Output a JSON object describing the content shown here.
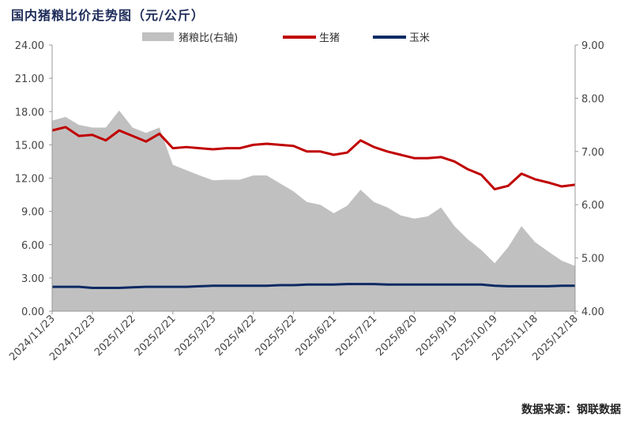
{
  "chart_data": {
    "type": "line",
    "title": "国内猪粮比价走势图（元/公斤）",
    "source": "数据来源：钢联数据",
    "x": [
      "2024/11/23",
      "2024/12/3",
      "2024/12/13",
      "2024/12/23",
      "2025/1/2",
      "2025/1/12",
      "2025/1/22",
      "2025/2/1",
      "2025/2/11",
      "2025/2/21",
      "2025/3/3",
      "2025/3/13",
      "2025/3/23",
      "2025/4/2",
      "2025/4/12",
      "2025/4/22",
      "2025/5/2",
      "2025/5/12",
      "2025/5/22",
      "2025/6/1",
      "2025/6/11",
      "2025/6/21",
      "2025/7/1",
      "2025/7/11",
      "2025/7/21",
      "2025/7/31",
      "2025/8/10",
      "2025/8/20",
      "2025/8/30",
      "2025/9/9",
      "2025/9/19",
      "2025/9/29",
      "2025/10/9",
      "2025/10/19",
      "2025/10/29",
      "2025/11/8",
      "2025/11/18",
      "2025/11/28",
      "2025/12/8",
      "2025/12/18"
    ],
    "x_ticks": [
      "2024/11/23",
      "2024/12/23",
      "2025/1/22",
      "2025/2/21",
      "2025/3/23",
      "2025/4/22",
      "2025/5/22",
      "2025/6/21",
      "2025/7/21",
      "2025/8/20",
      "2025/9/19",
      "2025/10/19",
      "2025/11/18",
      "2025/12/18"
    ],
    "y_left": {
      "range": [
        0,
        24
      ],
      "ticks": [
        "0.00",
        "3.00",
        "6.00",
        "9.00",
        "12.00",
        "15.00",
        "18.00",
        "21.00",
        "24.00"
      ]
    },
    "y_right": {
      "range": [
        4,
        9
      ],
      "ticks": [
        "4.00",
        "5.00",
        "6.00",
        "7.00",
        "8.00",
        "9.00"
      ]
    },
    "grid": false,
    "legend_placement": "top",
    "series": [
      {
        "name": "猪粮比(右轴)",
        "type": "area",
        "axis": "right",
        "color": "#c0c0c0",
        "values": [
          7.58,
          7.65,
          7.5,
          7.45,
          7.45,
          7.77,
          7.45,
          7.35,
          7.45,
          6.75,
          6.65,
          6.55,
          6.46,
          6.47,
          6.47,
          6.55,
          6.55,
          6.4,
          6.25,
          6.05,
          6.0,
          5.84,
          5.98,
          6.28,
          6.05,
          5.95,
          5.8,
          5.74,
          5.78,
          5.95,
          5.6,
          5.35,
          5.15,
          4.9,
          5.2,
          5.6,
          5.3,
          5.12,
          4.95,
          4.85
        ]
      },
      {
        "name": "生猪",
        "type": "line",
        "axis": "left",
        "color": "#c00000",
        "values": [
          16.3,
          16.6,
          15.8,
          15.9,
          15.4,
          16.3,
          15.8,
          15.3,
          16.0,
          14.7,
          14.8,
          14.7,
          14.6,
          14.7,
          14.7,
          15.0,
          15.1,
          15.0,
          14.9,
          14.4,
          14.4,
          14.1,
          14.3,
          15.4,
          14.8,
          14.4,
          14.1,
          13.8,
          13.8,
          13.9,
          13.5,
          12.8,
          12.3,
          11.0,
          11.3,
          12.4,
          11.9,
          11.6,
          11.25,
          11.4
        ]
      },
      {
        "name": "玉米",
        "type": "line",
        "axis": "left",
        "color": "#0d2a63",
        "values": [
          2.2,
          2.2,
          2.2,
          2.1,
          2.1,
          2.1,
          2.15,
          2.2,
          2.2,
          2.2,
          2.2,
          2.25,
          2.3,
          2.3,
          2.3,
          2.3,
          2.3,
          2.35,
          2.35,
          2.4,
          2.4,
          2.4,
          2.45,
          2.45,
          2.45,
          2.4,
          2.4,
          2.4,
          2.4,
          2.4,
          2.4,
          2.4,
          2.4,
          2.3,
          2.25,
          2.25,
          2.25,
          2.25,
          2.3,
          2.3
        ]
      }
    ]
  }
}
